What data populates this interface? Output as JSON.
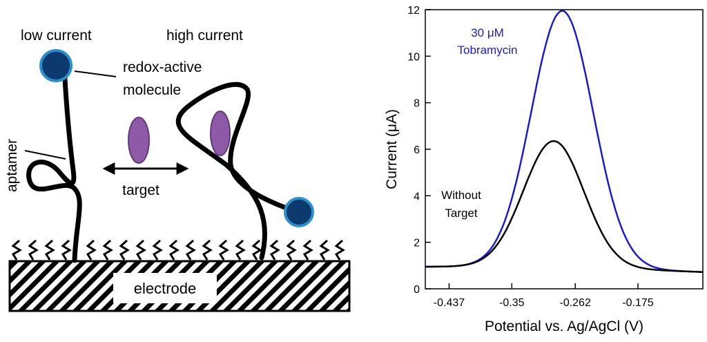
{
  "schematic": {
    "state_low": "low current",
    "state_high": "high current",
    "redox_label_line1": "redox-active",
    "redox_label_line2": "molecule",
    "aptamer_label": "aptamer",
    "target_label": "target",
    "electrode_label": "electrode",
    "colors": {
      "redox_fill": "#0d3a6e",
      "redox_stroke": "#2a8fcf",
      "target_fill": "#8e5aa8",
      "target_stroke": "#5e3a7a"
    },
    "icons": [
      "redox-molecule-icon",
      "target-molecule-icon",
      "double-arrow-icon",
      "electrode-hatch"
    ]
  },
  "chart_data": {
    "type": "line",
    "title": "",
    "xlabel": "Potential vs. Ag/AgCl (V)",
    "ylabel": "Current (μA)",
    "xlim": [
      -0.47,
      -0.085
    ],
    "ylim": [
      0,
      12
    ],
    "x_ticks": [
      -0.437,
      -0.35,
      -0.262,
      -0.175
    ],
    "x_tick_labels": [
      "-0.437",
      "-0.35",
      "-0.262",
      "-0.175"
    ],
    "y_ticks": [
      0,
      2,
      4,
      6,
      8,
      10,
      12
    ],
    "y_tick_labels": [
      "0",
      "2",
      "4",
      "6",
      "8",
      "10",
      "12"
    ],
    "series": [
      {
        "name": "30 μM Tobramycin",
        "label_line1": "30 μM",
        "label_line2": "Tobramycin",
        "color": "#1a1ad0",
        "baseline": 0.95,
        "peak_x": -0.28,
        "peak_height": 11.0,
        "sigma": 0.043,
        "tail_end": 0.72
      },
      {
        "name": "Without Target",
        "label_line1": "Without",
        "label_line2": "Target",
        "color": "#000000",
        "baseline": 0.95,
        "peak_x": -0.292,
        "peak_height": 5.4,
        "sigma": 0.042,
        "tail_end": 0.72
      }
    ]
  }
}
